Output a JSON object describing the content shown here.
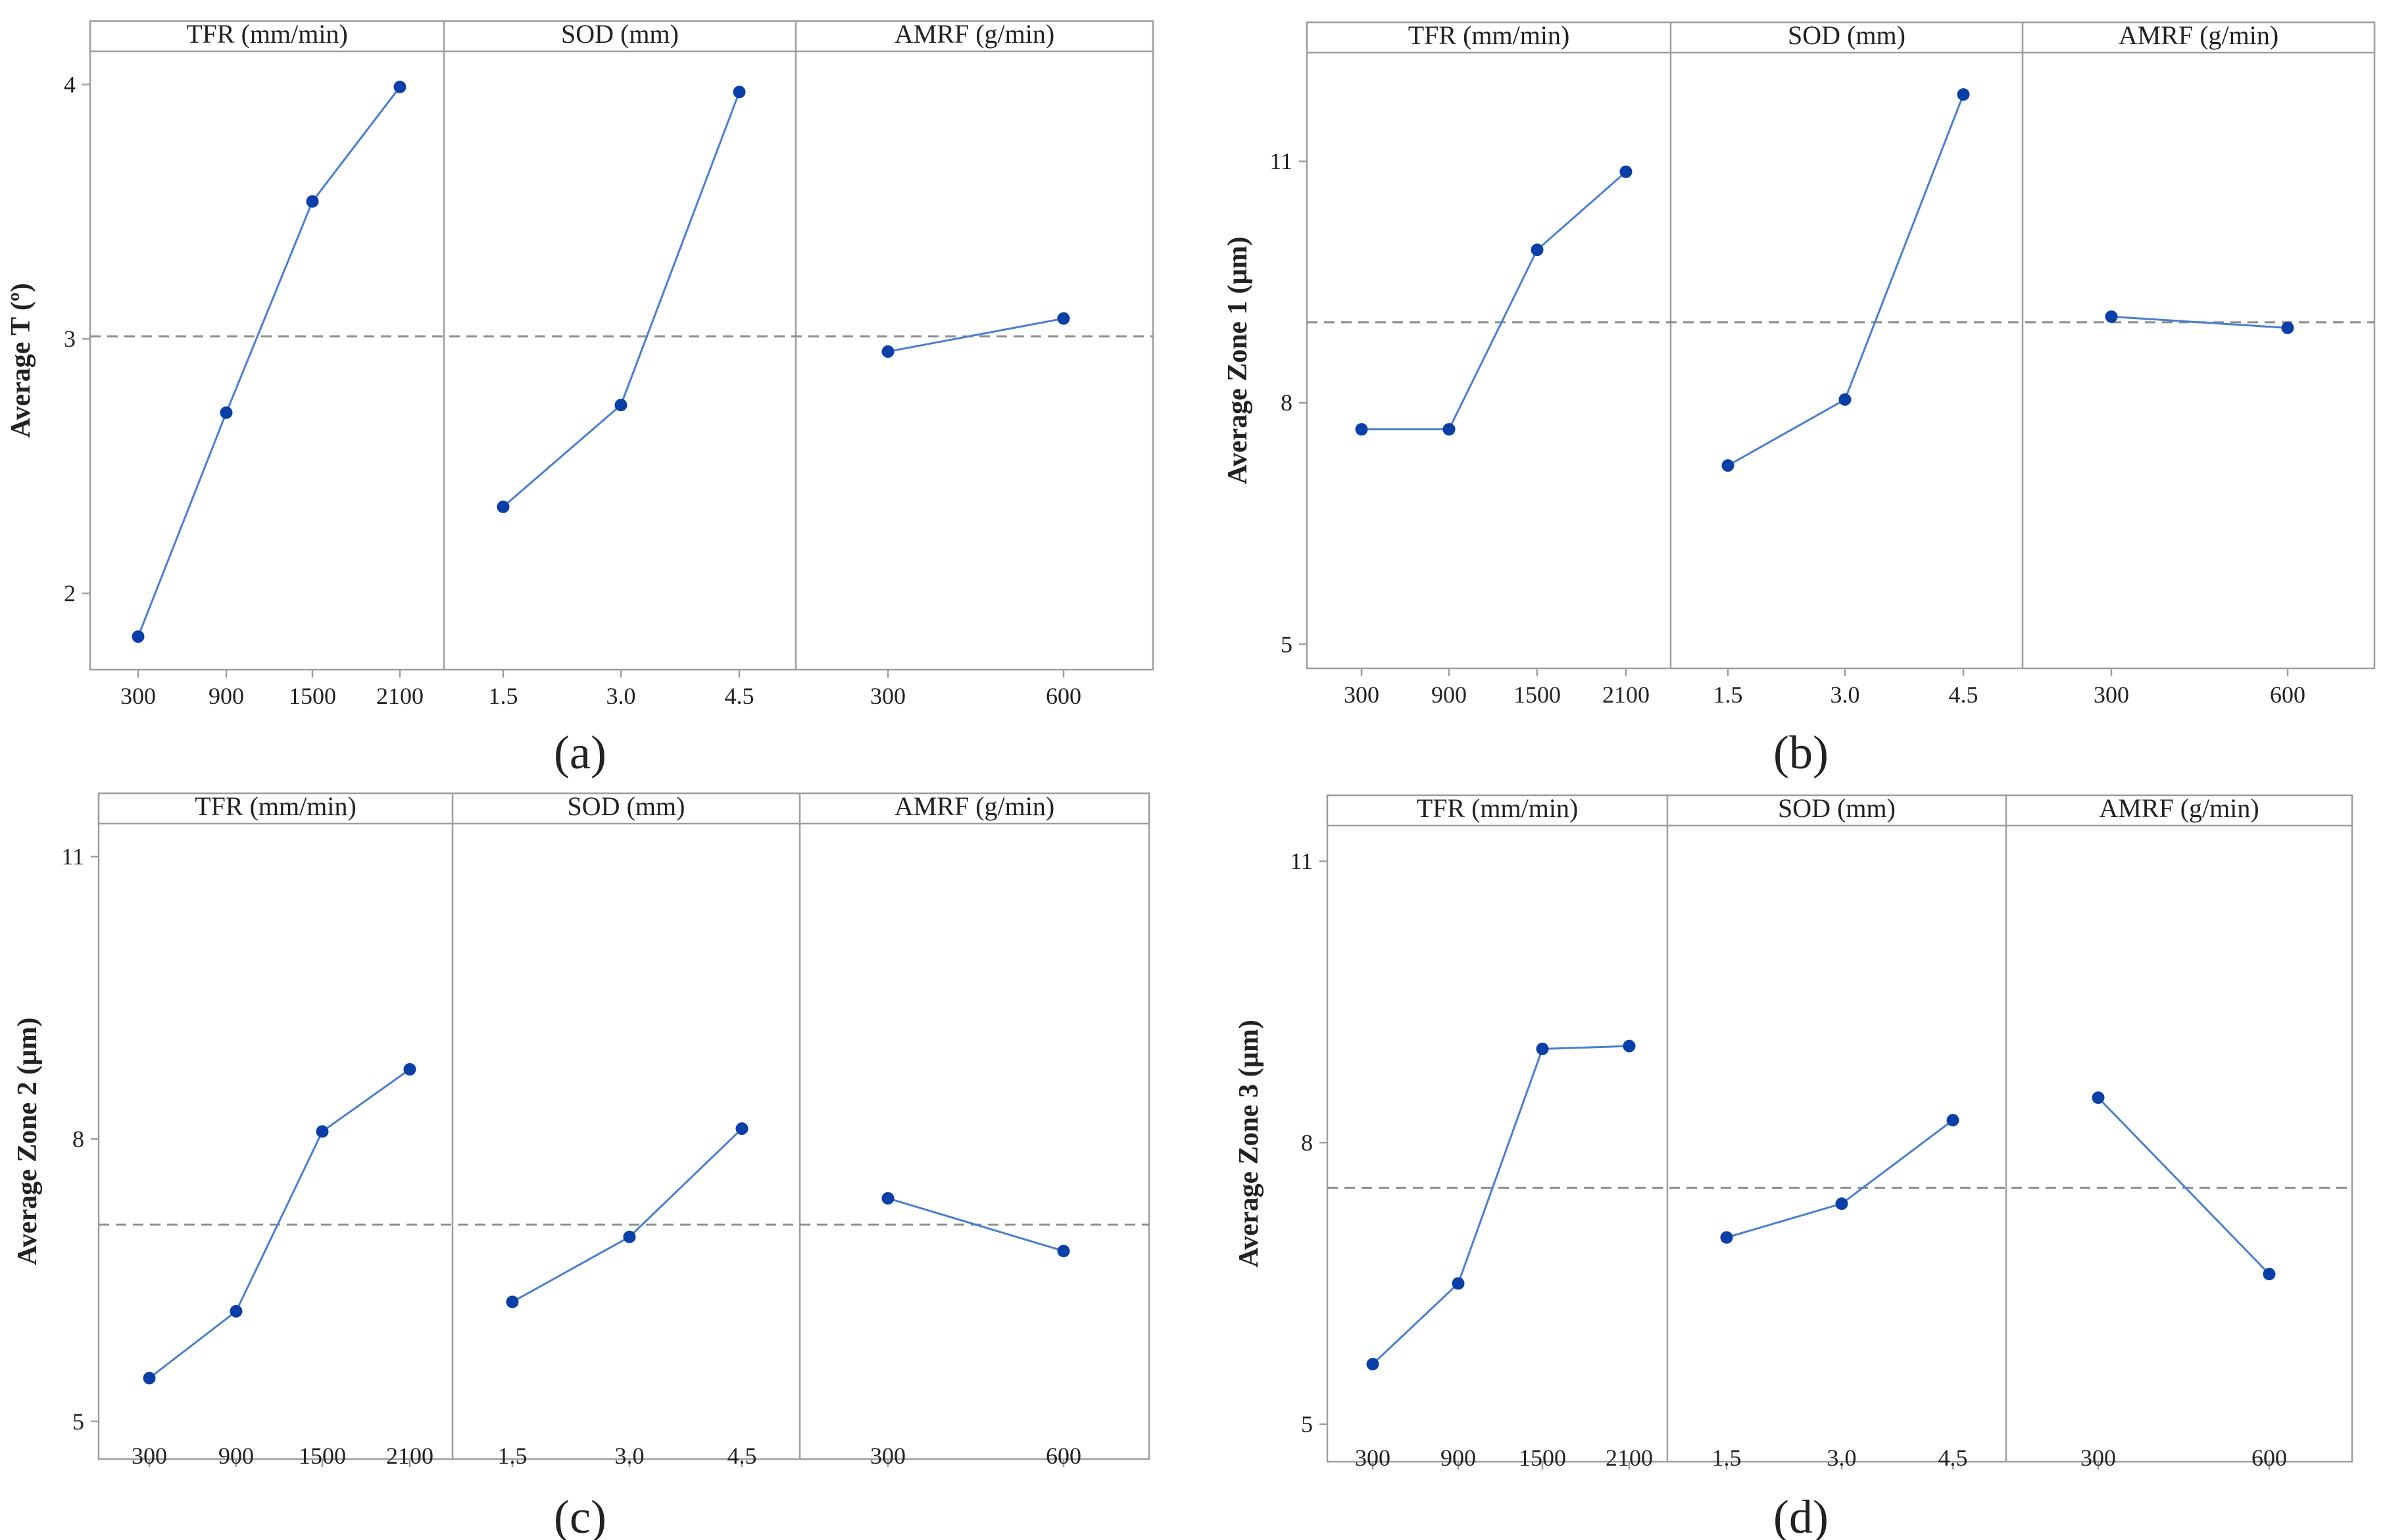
{
  "colors": {
    "series": "#4a7fd0",
    "marker": "#0a3fa8",
    "frame": "#9e9e9e",
    "mean_line": "#8c8c8c",
    "header_fill": "#ffffff"
  },
  "chart_data": [
    {
      "type": "line",
      "caption": "(a)",
      "ylabel": "Average T (º)",
      "ylim": [
        1.7,
        4.13
      ],
      "yticks": [
        "2",
        "3",
        "4"
      ],
      "grand_mean": 3.01,
      "panels": [
        {
          "title": "TFR (mm/min)",
          "categories": [
            "300",
            "900",
            "1500",
            "2100"
          ],
          "values": [
            1.83,
            2.71,
            3.54,
            3.99
          ]
        },
        {
          "title": "SOD (mm)",
          "categories": [
            "1.5",
            "3.0",
            "4.5"
          ],
          "values": [
            2.34,
            2.74,
            3.97
          ]
        },
        {
          "title": "AMRF (g/min)",
          "categories": [
            "300",
            "600"
          ],
          "values": [
            2.95,
            3.08
          ]
        }
      ]
    },
    {
      "type": "line",
      "caption": "(b)",
      "ylabel": "Average Zone 1 (µm)",
      "ylim": [
        4.7,
        12.35
      ],
      "yticks": [
        "5",
        "8",
        "11"
      ],
      "grand_mean": 9.0,
      "panels": [
        {
          "title": "TFR (mm/min)",
          "categories": [
            "300",
            "900",
            "1500",
            "2100"
          ],
          "values": [
            7.67,
            7.67,
            9.9,
            10.87
          ]
        },
        {
          "title": "SOD (mm)",
          "categories": [
            "1.5",
            "3.0",
            "4.5"
          ],
          "values": [
            7.22,
            8.04,
            11.83
          ]
        },
        {
          "title": "AMRF (g/min)",
          "categories": [
            "300",
            "600"
          ],
          "values": [
            9.07,
            8.93
          ]
        }
      ]
    },
    {
      "type": "line",
      "caption": "(c)",
      "ylabel": "Average Zone 2 (µm)",
      "ylim": [
        4.6,
        11.35
      ],
      "yticks": [
        "5",
        "8",
        "11"
      ],
      "grand_mean": 7.09,
      "panels": [
        {
          "title": "TFR (mm/min)",
          "categories": [
            "300",
            "900",
            "1500",
            "2100"
          ],
          "values": [
            5.46,
            6.17,
            8.08,
            8.74
          ]
        },
        {
          "title": "SOD (mm)",
          "categories": [
            "1.5",
            "3.0",
            "4.5"
          ],
          "values": [
            6.27,
            6.96,
            8.11
          ]
        },
        {
          "title": "AMRF (g/min)",
          "categories": [
            "300",
            "600"
          ],
          "values": [
            7.37,
            6.81
          ]
        }
      ]
    },
    {
      "type": "line",
      "caption": "(d)",
      "ylabel": "Average Zone 3 (µm)",
      "ylim": [
        4.6,
        11.38
      ],
      "yticks": [
        "5",
        "8",
        "11"
      ],
      "grand_mean": 7.52,
      "panels": [
        {
          "title": "TFR (mm/min)",
          "categories": [
            "300",
            "900",
            "1500",
            "2100"
          ],
          "values": [
            5.64,
            6.5,
            9.0,
            9.03
          ]
        },
        {
          "title": "SOD (mm)",
          "categories": [
            "1.5",
            "3.0",
            "4.5"
          ],
          "values": [
            6.99,
            7.35,
            8.24
          ]
        },
        {
          "title": "AMRF (g/min)",
          "categories": [
            "300",
            "600"
          ],
          "values": [
            8.48,
            6.6
          ]
        }
      ]
    }
  ]
}
